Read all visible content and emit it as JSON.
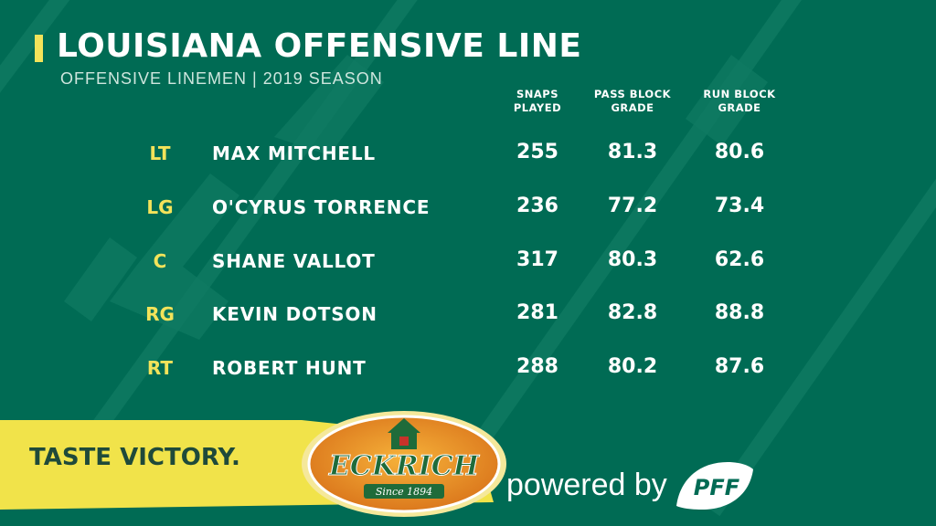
{
  "header": {
    "title": "LOUISIANA OFFENSIVE LINE",
    "subtitle": "OFFENSIVE LINEMEN | 2019 SEASON"
  },
  "columns": [
    {
      "line1": "SNAPS",
      "line2": "PLAYED"
    },
    {
      "line1": "PASS BLOCK",
      "line2": "GRADE"
    },
    {
      "line1": "RUN BLOCK",
      "line2": "GRADE"
    }
  ],
  "players": [
    {
      "pos": "LT",
      "name": "MAX MITCHELL",
      "snaps": "255",
      "pass": "81.3",
      "run": "80.6"
    },
    {
      "pos": "LG",
      "name": "O'CYRUS TORRENCE",
      "snaps": "236",
      "pass": "77.2",
      "run": "73.4"
    },
    {
      "pos": "C",
      "name": "SHANE VALLOT",
      "snaps": "317",
      "pass": "80.3",
      "run": "62.6"
    },
    {
      "pos": "RG",
      "name": "KEVIN DOTSON",
      "snaps": "281",
      "pass": "82.8",
      "run": "88.8"
    },
    {
      "pos": "RT",
      "name": "ROBERT HUNT",
      "snaps": "288",
      "pass": "80.2",
      "run": "87.6"
    }
  ],
  "sponsor": {
    "tagline": "TASTE VICTORY.",
    "brand": "ECKRICH",
    "since": "Since 1894",
    "powered_by": "powered by",
    "pff_logo": "PFF"
  },
  "colors": {
    "background": "#006b54",
    "accent_yellow": "#f3e35a",
    "banner_yellow": "#f1e34a",
    "logo_orange": "#e88a1c",
    "logo_green": "#1f6b3a"
  },
  "icons": {
    "title_marker": "yellow-bar",
    "logo_house": "house-icon"
  }
}
